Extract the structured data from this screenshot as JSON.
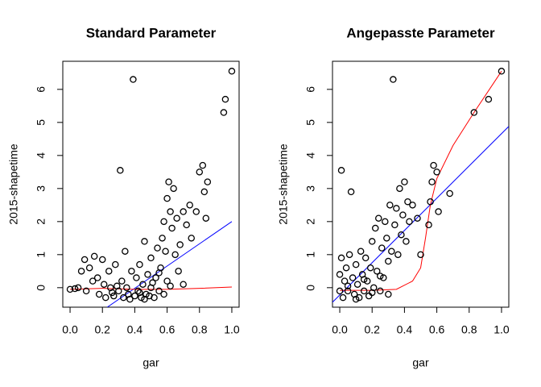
{
  "chart_data": [
    {
      "type": "scatter",
      "title": "Standard Parameter",
      "xlabel": "gar",
      "ylabel": "2015-shapetime",
      "color": "#000000",
      "xlim": [
        -0.045,
        1.045
      ],
      "ylim": [
        -0.59,
        6.85
      ],
      "xticks": [
        {
          "value": 0,
          "label": "0.0"
        },
        0.2,
        0.4,
        0.6,
        0.8,
        {
          "value": 1,
          "label": "1.0"
        }
      ],
      "yticks": [
        0,
        1,
        2,
        3,
        4,
        5,
        6
      ],
      "x": [
        0.0,
        0.03,
        0.05,
        0.07,
        0.09,
        0.1,
        0.12,
        0.14,
        0.15,
        0.17,
        0.18,
        0.2,
        0.21,
        0.22,
        0.24,
        0.25,
        0.27,
        0.28,
        0.3,
        0.31,
        0.32,
        0.33,
        0.34,
        0.35,
        0.36,
        0.38,
        0.39,
        0.4,
        0.41,
        0.42,
        0.43,
        0.44,
        0.45,
        0.46,
        0.47,
        0.48,
        0.5,
        0.5,
        0.52,
        0.53,
        0.54,
        0.55,
        0.56,
        0.57,
        0.58,
        0.59,
        0.6,
        0.6,
        0.61,
        0.62,
        0.63,
        0.64,
        0.65,
        0.66,
        0.67,
        0.68,
        0.7,
        0.7,
        0.72,
        0.74,
        0.75,
        0.78,
        0.8,
        0.82,
        0.83,
        0.84,
        0.85,
        0.95,
        0.96,
        1.0,
        0.26,
        0.29,
        0.37,
        0.43,
        0.46,
        0.49,
        0.51,
        0.55,
        0.58,
        0.62
      ],
      "values": [
        -0.05,
        -0.03,
        0.0,
        0.5,
        0.85,
        -0.1,
        0.6,
        0.2,
        0.95,
        0.3,
        -0.2,
        0.85,
        0.1,
        -0.3,
        0.5,
        0.0,
        -0.25,
        0.7,
        -0.1,
        3.55,
        0.2,
        -0.3,
        1.1,
        0.0,
        -0.2,
        0.5,
        6.3,
        -0.25,
        0.3,
        -0.1,
        0.7,
        -0.3,
        0.1,
        1.4,
        -0.2,
        0.4,
        0.0,
        0.9,
        -0.3,
        0.3,
        1.2,
        -0.1,
        0.6,
        1.5,
        2.0,
        1.1,
        2.7,
        0.2,
        3.2,
        2.3,
        1.8,
        3.0,
        1.0,
        2.1,
        0.5,
        1.3,
        2.3,
        0.1,
        1.9,
        2.5,
        1.5,
        2.3,
        3.5,
        3.7,
        2.9,
        2.1,
        3.2,
        5.3,
        5.7,
        6.55,
        -0.15,
        0.05,
        -0.35,
        -0.15,
        -0.35,
        -0.25,
        0.15,
        0.45,
        -0.2,
        0.05
      ],
      "lines": [
        {
          "color": "#0000ff",
          "x": [
            0.23,
            1.0
          ],
          "values": [
            -0.59,
            2.0
          ]
        },
        {
          "color": "#ff0000",
          "x": [
            0.0,
            0.2,
            0.4,
            0.6,
            0.8,
            1.0
          ],
          "values": [
            -0.05,
            -0.02,
            -0.05,
            -0.05,
            -0.02,
            0.02
          ]
        }
      ]
    },
    {
      "type": "scatter",
      "title": "Angepasste Parameter",
      "xlabel": "gar",
      "ylabel": "2015-shapetime",
      "color": "#000000",
      "xlim": [
        -0.045,
        1.045
      ],
      "ylim": [
        -0.59,
        6.85
      ],
      "xticks": [
        {
          "value": 0,
          "label": "0.0"
        },
        0.2,
        0.4,
        0.6,
        0.8,
        {
          "value": 1,
          "label": "1.0"
        }
      ],
      "yticks": [
        0,
        1,
        2,
        3,
        4,
        5,
        6
      ],
      "x": [
        0.0,
        0.0,
        0.01,
        0.01,
        0.02,
        0.03,
        0.04,
        0.05,
        0.06,
        0.07,
        0.08,
        0.09,
        0.1,
        0.11,
        0.12,
        0.13,
        0.14,
        0.15,
        0.16,
        0.17,
        0.18,
        0.19,
        0.2,
        0.21,
        0.22,
        0.23,
        0.24,
        0.25,
        0.26,
        0.27,
        0.28,
        0.29,
        0.3,
        0.31,
        0.32,
        0.33,
        0.34,
        0.35,
        0.36,
        0.37,
        0.38,
        0.39,
        0.4,
        0.41,
        0.42,
        0.43,
        0.45,
        0.48,
        0.5,
        0.55,
        0.56,
        0.57,
        0.58,
        0.6,
        0.61,
        0.68,
        0.83,
        0.92,
        1.0,
        0.05,
        0.1,
        0.15,
        0.2,
        0.25,
        0.3
      ],
      "values": [
        -0.1,
        0.4,
        3.55,
        0.9,
        -0.3,
        0.2,
        0.6,
        -0.1,
        1.0,
        2.9,
        0.3,
        -0.2,
        0.7,
        0.1,
        -0.3,
        1.1,
        0.4,
        -0.1,
        0.9,
        0.2,
        -0.25,
        0.6,
        1.4,
        0.0,
        1.8,
        0.5,
        2.1,
        -0.1,
        1.2,
        0.3,
        2.0,
        1.5,
        0.8,
        2.5,
        1.1,
        6.3,
        1.9,
        2.4,
        1.0,
        3.0,
        1.6,
        2.2,
        3.2,
        1.4,
        2.6,
        2.0,
        2.5,
        2.1,
        1.0,
        1.9,
        2.6,
        3.2,
        3.7,
        3.5,
        2.3,
        2.85,
        5.3,
        5.7,
        6.55,
        0.05,
        -0.35,
        0.25,
        -0.15,
        0.35,
        -0.2
      ],
      "lines": [
        {
          "color": "#0000ff",
          "x": [
            -0.045,
            1.045
          ],
          "values": [
            -0.44,
            4.88
          ]
        },
        {
          "color": "#ff0000",
          "x": [
            0.0,
            0.2,
            0.35,
            0.45,
            0.5,
            0.53,
            0.56,
            0.6,
            0.7,
            0.83,
            1.0
          ],
          "values": [
            -0.08,
            -0.08,
            -0.05,
            0.2,
            0.6,
            1.5,
            2.5,
            3.3,
            4.3,
            5.3,
            6.55
          ]
        }
      ]
    }
  ]
}
